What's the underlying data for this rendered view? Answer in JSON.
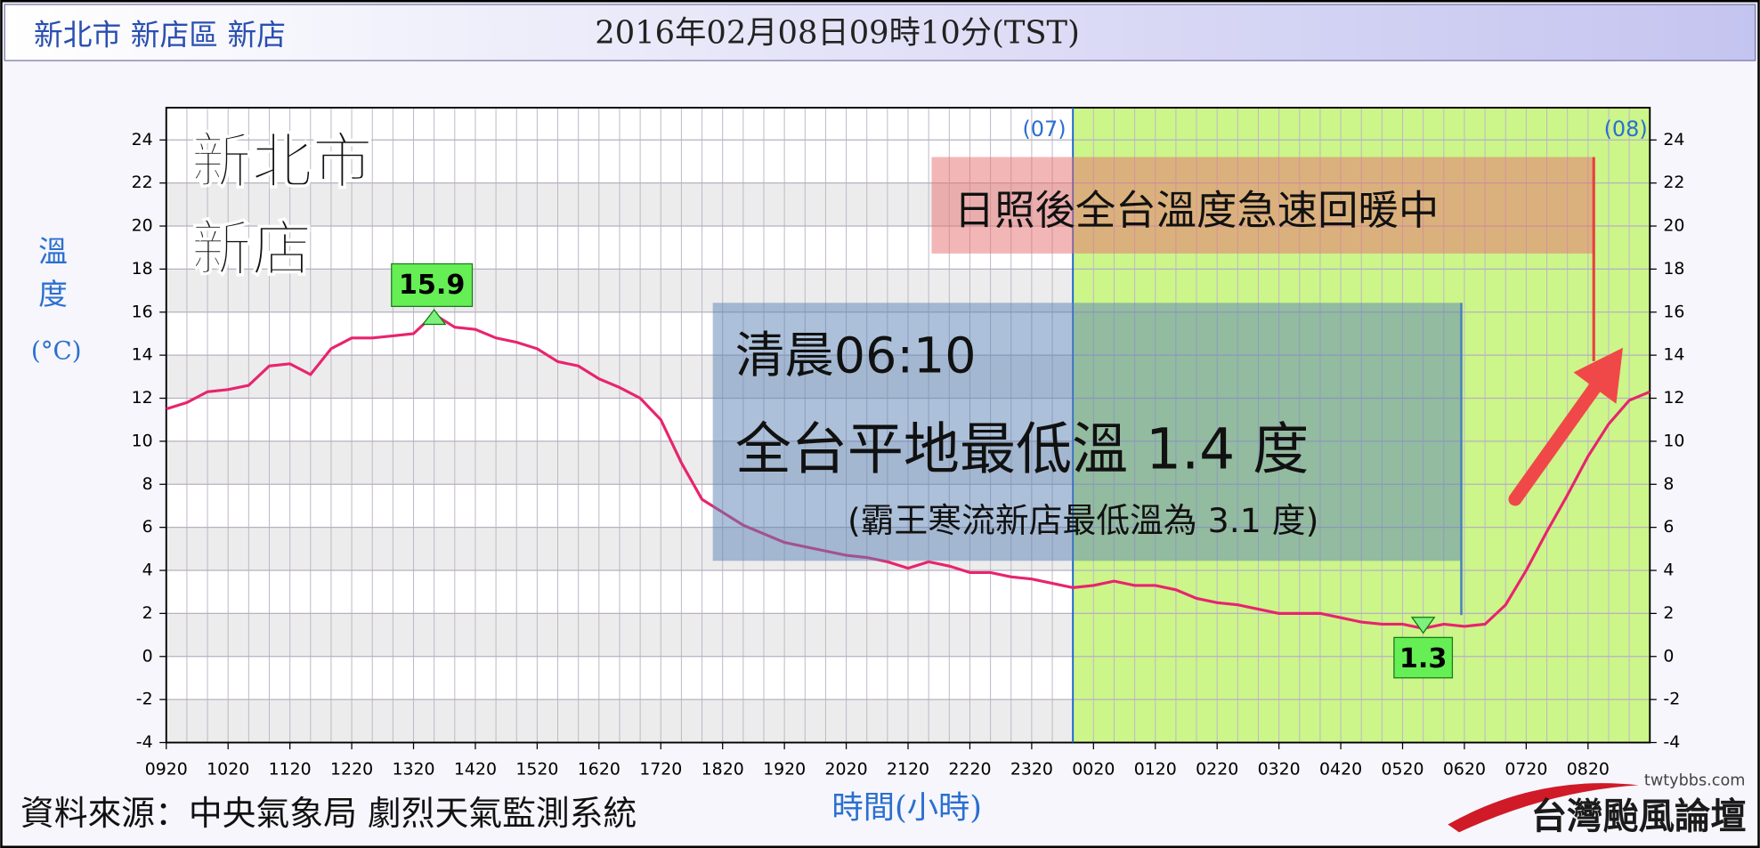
{
  "chart_data": {
    "type": "line",
    "title": "新北市 新店區 新店",
    "subtitle": "2016年02月08日09時10分(TST)",
    "ylabel_lines": [
      "溫",
      "度",
      "(°C)"
    ],
    "xlabel": "時間(小時)",
    "source": "資料來源：中央氣象局 劇烈天氣監測系統",
    "logo": [
      "twtybbs.com",
      "台灣颱風論壇"
    ],
    "day_labels": [
      "(07)",
      "(08)"
    ],
    "place_lines": [
      "新北市",
      "新店"
    ],
    "annotations": [
      "日照後全台溫度急速回暖中",
      "清晨06:10",
      "全台平地最低溫 1.4 度",
      "(霸王寒流新店最低溫為 3.1 度)"
    ],
    "categories": [
      "0920",
      null,
      null,
      "1020",
      null,
      null,
      "1120",
      null,
      null,
      "1220",
      null,
      null,
      "1320",
      null,
      null,
      "1420",
      null,
      null,
      "1520",
      null,
      null,
      "1620",
      null,
      null,
      "1720",
      null,
      null,
      "1820",
      null,
      null,
      "1920",
      null,
      null,
      "2020",
      null,
      null,
      "2120",
      null,
      null,
      "2220",
      null,
      null,
      "2320",
      null,
      null,
      "0020",
      null,
      null,
      "0120",
      null,
      null,
      "0220",
      null,
      null,
      "0320",
      null,
      null,
      "0420",
      null,
      null,
      "0520",
      null,
      null,
      "0620",
      null,
      null,
      "0720",
      null,
      null,
      "0820",
      null,
      null,
      null
    ],
    "values": [
      11.5,
      11.8,
      12.3,
      12.4,
      12.6,
      13.5,
      13.6,
      13.1,
      14.3,
      14.8,
      14.8,
      14.9,
      15.0,
      15.9,
      15.3,
      15.2,
      14.8,
      14.6,
      14.3,
      13.7,
      13.5,
      12.9,
      12.5,
      12.0,
      11.0,
      9.0,
      7.3,
      6.7,
      6.1,
      5.7,
      5.3,
      5.1,
      4.9,
      4.7,
      4.6,
      4.4,
      4.1,
      4.4,
      4.2,
      3.9,
      3.9,
      3.7,
      3.6,
      3.4,
      3.2,
      3.3,
      3.5,
      3.3,
      3.3,
      3.1,
      2.7,
      2.5,
      2.4,
      2.2,
      2.0,
      2.0,
      2.0,
      1.8,
      1.6,
      1.5,
      1.5,
      1.3,
      1.5,
      1.4,
      1.5,
      2.4,
      4.0,
      5.8,
      7.5,
      9.3,
      10.8,
      11.9,
      12.3
    ],
    "color": "#e8246e",
    "ylim": [
      -4,
      25.5
    ],
    "yticks": [
      -4,
      -2,
      0,
      2,
      4,
      6,
      8,
      10,
      12,
      14,
      16,
      18,
      20,
      22,
      24
    ],
    "grid": true
  }
}
